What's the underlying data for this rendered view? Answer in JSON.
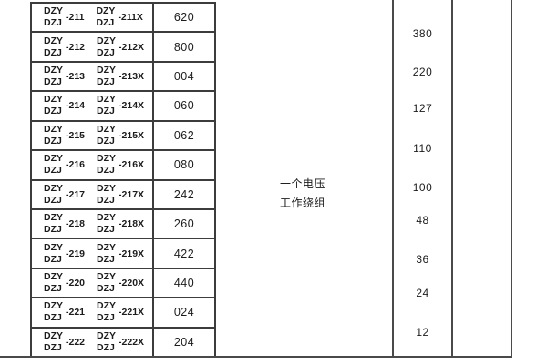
{
  "document": {
    "left_table": {
      "series_top": "DZY",
      "series_bottom": "DZJ",
      "rows": [
        {
          "suffix": "-211",
          "suffix_x": "-211X",
          "code": "620"
        },
        {
          "suffix": "-212",
          "suffix_x": "-212X",
          "code": "800"
        },
        {
          "suffix": "-213",
          "suffix_x": "-213X",
          "code": "004"
        },
        {
          "suffix": "-214",
          "suffix_x": "-214X",
          "code": "060"
        },
        {
          "suffix": "-215",
          "suffix_x": "-215X",
          "code": "062"
        },
        {
          "suffix": "-216",
          "suffix_x": "-216X",
          "code": "080"
        },
        {
          "suffix": "-217",
          "suffix_x": "-217X",
          "code": "242"
        },
        {
          "suffix": "-218",
          "suffix_x": "-218X",
          "code": "260"
        },
        {
          "suffix": "-219",
          "suffix_x": "-219X",
          "code": "422"
        },
        {
          "suffix": "-220",
          "suffix_x": "-220X",
          "code": "440"
        },
        {
          "suffix": "-221",
          "suffix_x": "-221X",
          "code": "024"
        },
        {
          "suffix": "-222",
          "suffix_x": "-222X",
          "code": "204"
        }
      ]
    },
    "winding_cell": {
      "line1": "一个电压",
      "line2": "工作绕组"
    },
    "voltage_values": [
      "380",
      "220",
      "127",
      "110",
      "100",
      "48",
      "36",
      "24",
      "12"
    ]
  },
  "colors": {
    "background": "#ffffff",
    "border": "#3c3c3c",
    "text": "#1b1b1b"
  }
}
